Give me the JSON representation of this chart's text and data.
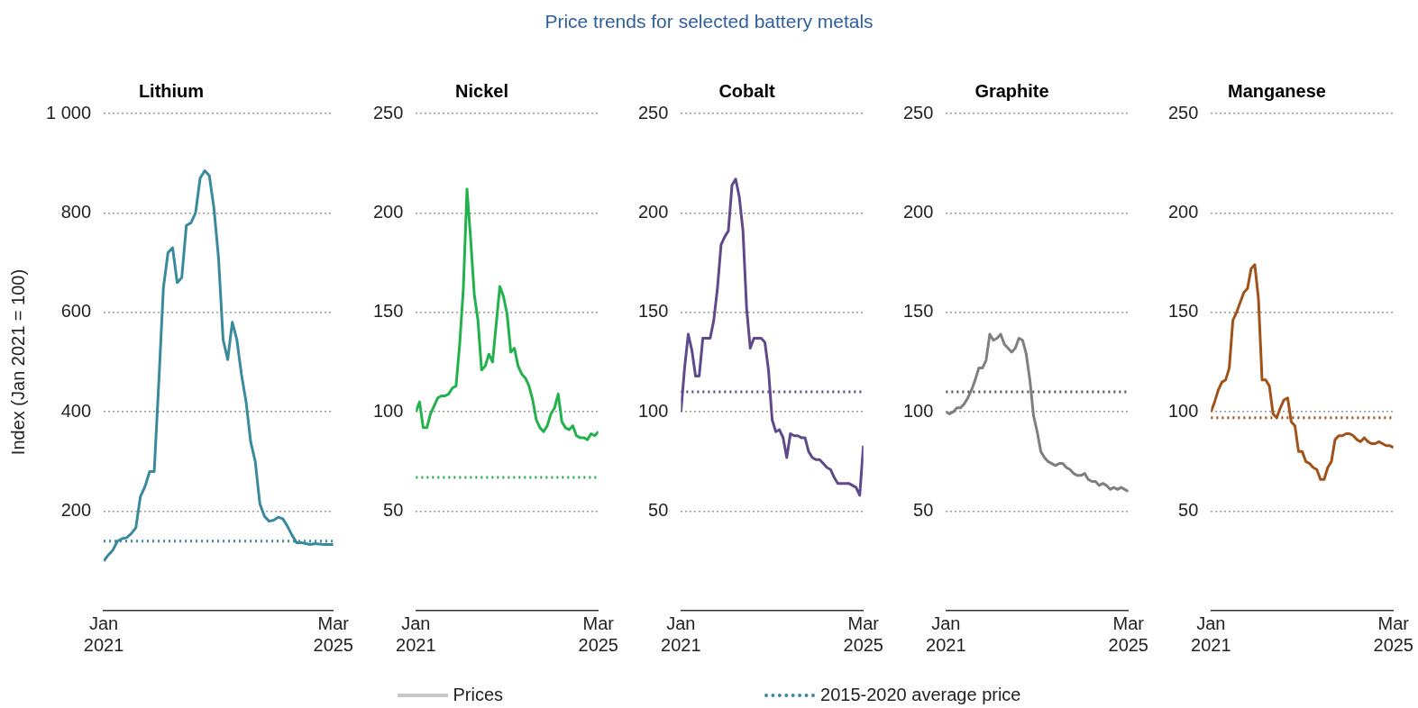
{
  "chart_data": [
    {
      "type": "other",
      "title": "Price trends for selected battery metals",
      "annotations": [
        "Prices",
        "2015-2020 average price"
      ]
    },
    {
      "type": "line",
      "title": "Lithium",
      "ylabel": "Index (Jan 2021 = 100)",
      "ylim": [
        0,
        1000
      ],
      "yticks": [
        200,
        400,
        600,
        800,
        {
          "value": 1000,
          "label": "1 000"
        }
      ],
      "xlim": [
        "2021-01",
        "2025-03"
      ],
      "xticks": [
        {
          "value": "2021-01",
          "label": "Jan 2021"
        },
        {
          "value": "2025-03",
          "label": "Mar 2025"
        }
      ],
      "grid": "y",
      "x": [
        "2021-01",
        "2021-02",
        "2021-03",
        "2021-04",
        "2021-05",
        "2021-06",
        "2021-07",
        "2021-08",
        "2021-09",
        "2021-10",
        "2021-11",
        "2021-12",
        "2022-01",
        "2022-02",
        "2022-03",
        "2022-04",
        "2022-05",
        "2022-06",
        "2022-07",
        "2022-08",
        "2022-09",
        "2022-10",
        "2022-11",
        "2022-12",
        "2023-01",
        "2023-02",
        "2023-03",
        "2023-04",
        "2023-05",
        "2023-06",
        "2023-07",
        "2023-08",
        "2023-09",
        "2023-10",
        "2023-11",
        "2023-12",
        "2024-01",
        "2024-02",
        "2024-03",
        "2024-04",
        "2024-05",
        "2024-06",
        "2024-07",
        "2024-08",
        "2024-09",
        "2024-10",
        "2024-11",
        "2024-12",
        "2025-01",
        "2025-02",
        "2025-03"
      ],
      "series": [
        {
          "color": "#3a8a9e",
          "values": [
            100,
            112,
            122,
            140,
            145,
            147,
            155,
            167,
            230,
            250,
            280,
            280,
            460,
            650,
            720,
            730,
            660,
            670,
            775,
            780,
            800,
            870,
            885,
            875,
            810,
            710,
            545,
            505,
            580,
            545,
            475,
            420,
            340,
            300,
            215,
            190,
            180,
            182,
            188,
            185,
            170,
            152,
            137,
            137,
            135,
            133,
            135,
            134,
            133,
            133,
            133
          ]
        }
      ],
      "ref_lines": [
        {
          "axis": "y",
          "value": 140,
          "color": "#3a8a9e",
          "line_style": "dotted"
        }
      ]
    },
    {
      "type": "line",
      "title": "Nickel",
      "ylim": [
        0,
        250
      ],
      "yticks": [
        50,
        100,
        150,
        200,
        250
      ],
      "xlim": [
        "2021-01",
        "2025-03"
      ],
      "xticks": [
        {
          "value": "2021-01",
          "label": "Jan 2021"
        },
        {
          "value": "2025-03",
          "label": "Mar 2025"
        }
      ],
      "grid": "y",
      "x": [
        "2021-01",
        "2021-02",
        "2021-03",
        "2021-04",
        "2021-05",
        "2021-06",
        "2021-07",
        "2021-08",
        "2021-09",
        "2021-10",
        "2021-11",
        "2021-12",
        "2022-01",
        "2022-02",
        "2022-03",
        "2022-04",
        "2022-05",
        "2022-06",
        "2022-07",
        "2022-08",
        "2022-09",
        "2022-10",
        "2022-11",
        "2022-12",
        "2023-01",
        "2023-02",
        "2023-03",
        "2023-04",
        "2023-05",
        "2023-06",
        "2023-07",
        "2023-08",
        "2023-09",
        "2023-10",
        "2023-11",
        "2023-12",
        "2024-01",
        "2024-02",
        "2024-03",
        "2024-04",
        "2024-05",
        "2024-06",
        "2024-07",
        "2024-08",
        "2024-09",
        "2024-10",
        "2024-11",
        "2024-12",
        "2025-01",
        "2025-02",
        "2025-03"
      ],
      "series": [
        {
          "color": "#22b14c",
          "values": [
            100,
            105,
            92,
            92,
            99,
            103,
            107,
            108,
            108,
            109,
            112,
            113,
            134,
            162,
            212,
            187,
            159,
            146,
            121,
            123,
            129,
            125,
            144,
            163,
            158,
            149,
            130,
            132,
            123,
            119,
            117,
            113,
            106,
            96,
            92,
            90,
            93,
            99,
            102,
            109,
            95,
            92,
            91,
            93,
            88,
            87,
            87,
            86,
            89,
            88,
            90
          ]
        }
      ],
      "ref_lines": [
        {
          "axis": "y",
          "value": 67,
          "color": "#22b14c",
          "line_style": "dotted"
        }
      ]
    },
    {
      "type": "line",
      "title": "Cobalt",
      "ylim": [
        0,
        250
      ],
      "yticks": [
        50,
        100,
        150,
        200,
        250
      ],
      "xlim": [
        "2021-01",
        "2025-03"
      ],
      "xticks": [
        {
          "value": "2021-01",
          "label": "Jan 2021"
        },
        {
          "value": "2025-03",
          "label": "Mar 2025"
        }
      ],
      "grid": "y",
      "x": [
        "2021-01",
        "2021-02",
        "2021-03",
        "2021-04",
        "2021-05",
        "2021-06",
        "2021-07",
        "2021-08",
        "2021-09",
        "2021-10",
        "2021-11",
        "2021-12",
        "2022-01",
        "2022-02",
        "2022-03",
        "2022-04",
        "2022-05",
        "2022-06",
        "2022-07",
        "2022-08",
        "2022-09",
        "2022-10",
        "2022-11",
        "2022-12",
        "2023-01",
        "2023-02",
        "2023-03",
        "2023-04",
        "2023-05",
        "2023-06",
        "2023-07",
        "2023-08",
        "2023-09",
        "2023-10",
        "2023-11",
        "2023-12",
        "2024-01",
        "2024-02",
        "2024-03",
        "2024-04",
        "2024-05",
        "2024-06",
        "2024-07",
        "2024-08",
        "2024-09",
        "2024-10",
        "2024-11",
        "2024-12",
        "2025-01",
        "2025-02",
        "2025-03"
      ],
      "series": [
        {
          "color": "#5e4a8b",
          "values": [
            100,
            122,
            139,
            131,
            118,
            118,
            137,
            137,
            137,
            146,
            162,
            184,
            188,
            191,
            214,
            217,
            208,
            191,
            152,
            132,
            137,
            137,
            137,
            135,
            121,
            96,
            90,
            91,
            87,
            77,
            89,
            88,
            88,
            87,
            87,
            80,
            77,
            76,
            76,
            74,
            72,
            71,
            67,
            64,
            64,
            64,
            64,
            63,
            62,
            58,
            83
          ]
        }
      ],
      "ref_lines": [
        {
          "axis": "y",
          "value": 110,
          "color": "#5e4a8b",
          "line_style": "dotted"
        }
      ]
    },
    {
      "type": "line",
      "title": "Graphite",
      "ylim": [
        0,
        250
      ],
      "yticks": [
        50,
        100,
        150,
        200,
        250
      ],
      "xlim": [
        "2021-01",
        "2025-03"
      ],
      "xticks": [
        {
          "value": "2021-01",
          "label": "Jan 2021"
        },
        {
          "value": "2025-03",
          "label": "Mar 2025"
        }
      ],
      "grid": "y",
      "x": [
        "2021-01",
        "2021-02",
        "2021-03",
        "2021-04",
        "2021-05",
        "2021-06",
        "2021-07",
        "2021-08",
        "2021-09",
        "2021-10",
        "2021-11",
        "2021-12",
        "2022-01",
        "2022-02",
        "2022-03",
        "2022-04",
        "2022-05",
        "2022-06",
        "2022-07",
        "2022-08",
        "2022-09",
        "2022-10",
        "2022-11",
        "2022-12",
        "2023-01",
        "2023-02",
        "2023-03",
        "2023-04",
        "2023-05",
        "2023-06",
        "2023-07",
        "2023-08",
        "2023-09",
        "2023-10",
        "2023-11",
        "2023-12",
        "2024-01",
        "2024-02",
        "2024-03",
        "2024-04",
        "2024-05",
        "2024-06",
        "2024-07",
        "2024-08",
        "2024-09",
        "2024-10",
        "2024-11",
        "2024-12",
        "2025-01",
        "2025-02",
        "2025-03"
      ],
      "series": [
        {
          "color": "#7f7f7f",
          "values": [
            100,
            99,
            100,
            102,
            102,
            104,
            107,
            111,
            116,
            122,
            122,
            126,
            139,
            136,
            137,
            139,
            134,
            132,
            130,
            132,
            137,
            136,
            129,
            116,
            98,
            90,
            80,
            77,
            75,
            74,
            73,
            74,
            74,
            72,
            71,
            69,
            68,
            68,
            69,
            66,
            65,
            65,
            63,
            64,
            63,
            61,
            62,
            61,
            62,
            61,
            60
          ]
        }
      ],
      "ref_lines": [
        {
          "axis": "y",
          "value": 110,
          "color": "#595959",
          "line_style": "dotted"
        }
      ]
    },
    {
      "type": "line",
      "title": "Manganese",
      "ylim": [
        0,
        250
      ],
      "yticks": [
        50,
        100,
        150,
        200,
        250
      ],
      "xlim": [
        "2021-01",
        "2025-03"
      ],
      "xticks": [
        {
          "value": "2021-01",
          "label": "Jan 2021"
        },
        {
          "value": "2025-03",
          "label": "Mar 2025"
        }
      ],
      "grid": "y",
      "x": [
        "2021-01",
        "2021-02",
        "2021-03",
        "2021-04",
        "2021-05",
        "2021-06",
        "2021-07",
        "2021-08",
        "2021-09",
        "2021-10",
        "2021-11",
        "2021-12",
        "2022-01",
        "2022-02",
        "2022-03",
        "2022-04",
        "2022-05",
        "2022-06",
        "2022-07",
        "2022-08",
        "2022-09",
        "2022-10",
        "2022-11",
        "2022-12",
        "2023-01",
        "2023-02",
        "2023-03",
        "2023-04",
        "2023-05",
        "2023-06",
        "2023-07",
        "2023-08",
        "2023-09",
        "2023-10",
        "2023-11",
        "2023-12",
        "2024-01",
        "2024-02",
        "2024-03",
        "2024-04",
        "2024-05",
        "2024-06",
        "2024-07",
        "2024-08",
        "2024-09",
        "2024-10",
        "2024-11",
        "2024-12",
        "2025-01",
        "2025-02",
        "2025-03"
      ],
      "series": [
        {
          "color": "#a0521a",
          "values": [
            100,
            105,
            111,
            115,
            116,
            122,
            146,
            150,
            155,
            160,
            162,
            172,
            174,
            157,
            116,
            116,
            113,
            99,
            97,
            102,
            106,
            107,
            95,
            93,
            80,
            80,
            75,
            74,
            72,
            71,
            66,
            66,
            72,
            75,
            86,
            88,
            88,
            89,
            89,
            88,
            86,
            85,
            87,
            85,
            84,
            84,
            85,
            84,
            83,
            83,
            82
          ]
        }
      ],
      "ref_lines": [
        {
          "axis": "y",
          "value": 97,
          "color": "#a0521a",
          "line_style": "dotted"
        }
      ]
    }
  ]
}
